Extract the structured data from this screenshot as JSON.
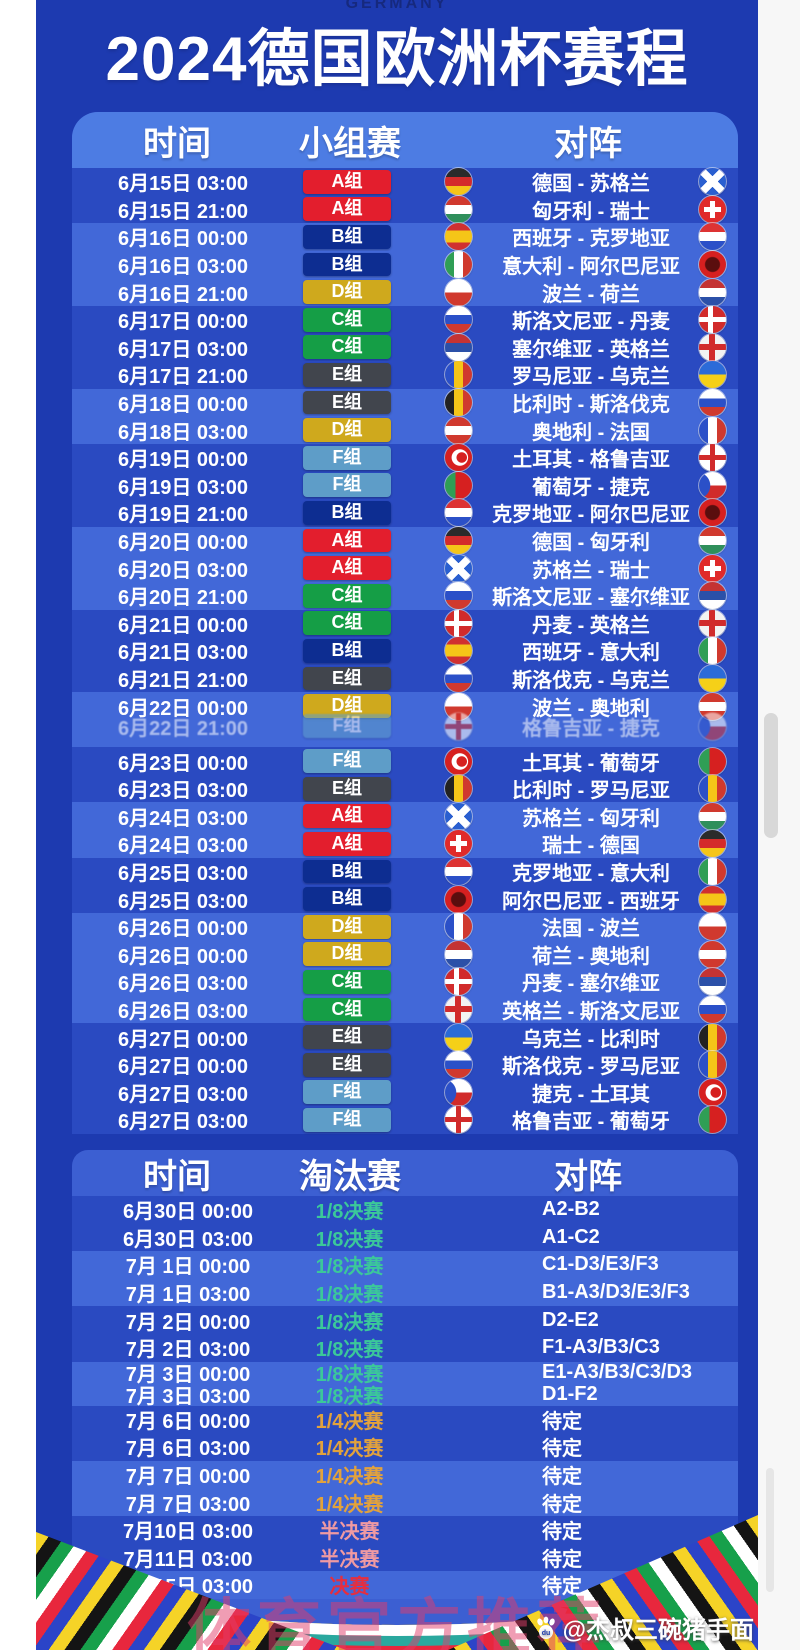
{
  "page": {
    "country_label": "GERMANY",
    "title": "2024德国欧洲杯赛程",
    "watermark": "体育官方推荐",
    "attribution": "@杰叔三碗猪手面"
  },
  "colors": {
    "poster_blue": "#1d3ab0",
    "panel_blue": "#3c5fd2",
    "header_band_blue": "#4d7ce3",
    "row_band_dark": "#2a4ac1",
    "row_band_light": "#4268d8"
  },
  "group_stage": {
    "headers": {
      "time": "时间",
      "stage": "小组赛",
      "vs": "对阵"
    },
    "groups": {
      "A": {
        "label": "A组",
        "color": "#e31e2d"
      },
      "B": {
        "label": "B组",
        "color": "#0d2d91"
      },
      "C": {
        "label": "C组",
        "color": "#159e46"
      },
      "D": {
        "label": "D组",
        "color": "#cfa91d"
      },
      "E": {
        "label": "E组",
        "color": "#41454d"
      },
      "F": {
        "label": "F组",
        "color": "#5e9dc8"
      }
    },
    "rows": [
      {
        "time": "6月15日 03:00",
        "group": "A",
        "home": "de",
        "match": "德国 - 苏格兰",
        "away": "scotland",
        "band": "dark"
      },
      {
        "time": "6月15日 21:00",
        "group": "A",
        "home": "hu",
        "match": "匈牙利 - 瑞士",
        "away": "ch",
        "band": "dark"
      },
      {
        "time": "6月16日 00:00",
        "group": "B",
        "home": "es",
        "match": "西班牙 - 克罗地亚",
        "away": "hr",
        "band": "light"
      },
      {
        "time": "6月16日 03:00",
        "group": "B",
        "home": "it",
        "match": "意大利 - 阿尔巴尼亚",
        "away": "al",
        "band": "light"
      },
      {
        "time": "6月16日 21:00",
        "group": "D",
        "home": "pl",
        "match": "波兰 - 荷兰",
        "away": "nl",
        "band": "light"
      },
      {
        "time": "6月17日 00:00",
        "group": "C",
        "home": "si",
        "match": "斯洛文尼亚 - 丹麦",
        "away": "dk",
        "band": "dark"
      },
      {
        "time": "6月17日 03:00",
        "group": "C",
        "home": "rs",
        "match": "塞尔维亚 - 英格兰",
        "away": "en",
        "band": "dark"
      },
      {
        "time": "6月17日 21:00",
        "group": "E",
        "home": "ro",
        "match": "罗马尼亚 - 乌克兰",
        "away": "ua",
        "band": "dark"
      },
      {
        "time": "6月18日 00:00",
        "group": "E",
        "home": "be",
        "match": "比利时 - 斯洛伐克",
        "away": "sk",
        "band": "light"
      },
      {
        "time": "6月18日 03:00",
        "group": "D",
        "home": "at",
        "match": "奥地利 - 法国",
        "away": "fr",
        "band": "light"
      },
      {
        "time": "6月19日 00:00",
        "group": "F",
        "home": "tr",
        "match": "土耳其 - 格鲁吉亚",
        "away": "ge",
        "band": "dark"
      },
      {
        "time": "6月19日 03:00",
        "group": "F",
        "home": "pt",
        "match": "葡萄牙 - 捷克",
        "away": "cz",
        "band": "dark"
      },
      {
        "time": "6月19日 21:00",
        "group": "B",
        "home": "hr",
        "match": "克罗地亚 - 阿尔巴尼亚",
        "away": "al",
        "band": "dark"
      },
      {
        "time": "6月20日 00:00",
        "group": "A",
        "home": "de",
        "match": "德国 - 匈牙利",
        "away": "hu",
        "band": "light"
      },
      {
        "time": "6月20日 03:00",
        "group": "A",
        "home": "scotland",
        "match": "苏格兰 - 瑞士",
        "away": "ch",
        "band": "light"
      },
      {
        "time": "6月20日 21:00",
        "group": "C",
        "home": "si",
        "match": "斯洛文尼亚 - 塞尔维亚",
        "away": "rs",
        "band": "light"
      },
      {
        "time": "6月21日 00:00",
        "group": "C",
        "home": "dk",
        "match": "丹麦 - 英格兰",
        "away": "en",
        "band": "dark"
      },
      {
        "time": "6月21日 03:00",
        "group": "B",
        "home": "es",
        "match": "西班牙 - 意大利",
        "away": "it",
        "band": "dark"
      },
      {
        "time": "6月21日 21:00",
        "group": "E",
        "home": "sk",
        "match": "斯洛伐克 - 乌克兰",
        "away": "ua",
        "band": "dark"
      },
      {
        "glitch": true,
        "band": "light",
        "layers": [
          {
            "time": "6月22日 00:00",
            "group": "D",
            "home": "pl",
            "match": "波兰 - 奥地利",
            "away": "at"
          },
          {
            "time": "6月22日 21:00",
            "group": "F",
            "home": "ge",
            "match": "格鲁吉亚 - 捷克",
            "away": "cz"
          }
        ]
      },
      {
        "time": "6月23日 00:00",
        "group": "F",
        "home": "tr",
        "match": "土耳其 - 葡萄牙",
        "away": "pt",
        "band": "dark"
      },
      {
        "time": "6月23日 03:00",
        "group": "E",
        "home": "be",
        "match": "比利时 - 罗马尼亚",
        "away": "ro",
        "band": "dark"
      },
      {
        "time": "6月24日 03:00",
        "group": "A",
        "home": "scotland",
        "match": "苏格兰 - 匈牙利",
        "away": "hu",
        "band": "light"
      },
      {
        "time": "6月24日 03:00",
        "group": "A",
        "home": "ch",
        "match": "瑞士 - 德国",
        "away": "de",
        "band": "light"
      },
      {
        "time": "6月25日 03:00",
        "group": "B",
        "home": "hr",
        "match": "克罗地亚 - 意大利",
        "away": "it",
        "band": "dark"
      },
      {
        "time": "6月25日 03:00",
        "group": "B",
        "home": "al",
        "match": "阿尔巴尼亚 - 西班牙",
        "away": "es",
        "band": "dark"
      },
      {
        "time": "6月26日 00:00",
        "group": "D",
        "home": "fr",
        "match": "法国 - 波兰",
        "away": "pl",
        "band": "light"
      },
      {
        "time": "6月26日 00:00",
        "group": "D",
        "home": "nl",
        "match": "荷兰 - 奥地利",
        "away": "at",
        "band": "light"
      },
      {
        "time": "6月26日 03:00",
        "group": "C",
        "home": "dk",
        "match": "丹麦 - 塞尔维亚",
        "away": "rs",
        "band": "light"
      },
      {
        "time": "6月26日 03:00",
        "group": "C",
        "home": "en",
        "match": "英格兰 - 斯洛文尼亚",
        "away": "si",
        "band": "light"
      },
      {
        "time": "6月27日 00:00",
        "group": "E",
        "home": "ua",
        "match": "乌克兰 - 比利时",
        "away": "be",
        "band": "dark"
      },
      {
        "time": "6月27日 00:00",
        "group": "E",
        "home": "sk",
        "match": "斯洛伐克 - 罗马尼亚",
        "away": "ro",
        "band": "dark"
      },
      {
        "time": "6月27日 03:00",
        "group": "F",
        "home": "cz",
        "match": "捷克 - 土耳其",
        "away": "tr",
        "band": "dark"
      },
      {
        "time": "6月27日 03:00",
        "group": "F",
        "home": "ge",
        "match": "格鲁吉亚 - 葡萄牙",
        "away": "pt",
        "band": "dark"
      }
    ]
  },
  "knockout": {
    "headers": {
      "time": "时间",
      "stage": "淘汰赛",
      "vs": "对阵"
    },
    "stages": {
      "r16": {
        "label": "1/8决赛",
        "color": "#3bc89a"
      },
      "qf": {
        "label": "1/4决赛",
        "color": "#e2a23c"
      },
      "sf": {
        "label": "半决赛",
        "color": "#ef9aa2"
      },
      "final": {
        "label": "决赛",
        "color": "#e62e3e"
      }
    },
    "rows": [
      {
        "time": "6月30日 00:00",
        "stage": "r16",
        "opponent": "A2-B2",
        "band": "dark",
        "small": false
      },
      {
        "time": "6月30日 03:00",
        "stage": "r16",
        "opponent": "A1-C2",
        "band": "dark",
        "small": false
      },
      {
        "time": "7月 1日 00:00",
        "stage": "r16",
        "opponent": "C1-D3/E3/F3",
        "band": "light",
        "small": false
      },
      {
        "time": "7月 1日 03:00",
        "stage": "r16",
        "opponent": "B1-A3/D3/E3/F3",
        "band": "light",
        "small": false
      },
      {
        "time": "7月 2日 00:00",
        "stage": "r16",
        "opponent": "D2-E2",
        "band": "dark",
        "small": false
      },
      {
        "time": "7月 2日 03:00",
        "stage": "r16",
        "opponent": "F1-A3/B3/C3",
        "band": "dark",
        "small": false
      },
      {
        "time": "7月 3日 00:00",
        "stage": "r16",
        "opponent": "E1-A3/B3/C3/D3",
        "band": "light",
        "small": true
      },
      {
        "time": "7月 3日 03:00",
        "stage": "r16",
        "opponent": "D1-F2",
        "band": "light",
        "small": true
      },
      {
        "time": "7月 6日 00:00",
        "stage": "qf",
        "opponent": "待定",
        "band": "dark",
        "small": false
      },
      {
        "time": "7月 6日 03:00",
        "stage": "qf",
        "opponent": "待定",
        "band": "dark",
        "small": false
      },
      {
        "time": "7月 7日 00:00",
        "stage": "qf",
        "opponent": "待定",
        "band": "light",
        "small": false
      },
      {
        "time": "7月 7日 03:00",
        "stage": "qf",
        "opponent": "待定",
        "band": "light",
        "small": false
      },
      {
        "time": "7月10日 03:00",
        "stage": "sf",
        "opponent": "待定",
        "band": "dark",
        "small": false
      },
      {
        "time": "7月11日 03:00",
        "stage": "sf",
        "opponent": "待定",
        "band": "dark",
        "small": false
      },
      {
        "time": "7月15日 03:00",
        "stage": "final",
        "opponent": "待定",
        "band": "light",
        "small": false
      }
    ]
  }
}
